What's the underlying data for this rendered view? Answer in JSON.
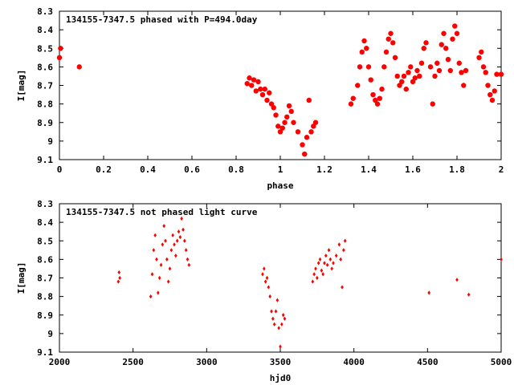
{
  "colors": {
    "marker": "#ff0000",
    "axis": "#000000",
    "background": "#ffffff"
  },
  "chart_data": [
    {
      "type": "scatter",
      "title": "134155-7347.5 phased with P=494.0day",
      "xlabel": "phase",
      "ylabel": "I[mag]",
      "xlim": [
        0,
        2
      ],
      "ylim": [
        8.3,
        9.1
      ],
      "y_inverted": true,
      "grid": false,
      "x_ticks": [
        "0",
        "0.2",
        "0.4",
        "0.6",
        "0.8",
        "1",
        "1.2",
        "1.4",
        "1.6",
        "1.8",
        "2"
      ],
      "y_ticks": [
        "8.3",
        "8.4",
        "8.5",
        "8.6",
        "8.7",
        "8.8",
        "8.9",
        "9",
        "9.1"
      ],
      "series": [
        {
          "marker": "filled-circle",
          "x": [
            0.0,
            0.005,
            0.09,
            0.85,
            0.86,
            0.87,
            0.88,
            0.89,
            0.9,
            0.91,
            0.92,
            0.93,
            0.94,
            0.95,
            0.96,
            0.97,
            0.98,
            0.99,
            1.0,
            1.01,
            1.02,
            1.03,
            1.04,
            1.05,
            1.06,
            1.08,
            1.1,
            1.11,
            1.12,
            1.13,
            1.14,
            1.15,
            1.16,
            1.32,
            1.33,
            1.35,
            1.36,
            1.37,
            1.38,
            1.39,
            1.4,
            1.41,
            1.42,
            1.43,
            1.44,
            1.45,
            1.46,
            1.47,
            1.48,
            1.49,
            1.5,
            1.51,
            1.52,
            1.53,
            1.54,
            1.55,
            1.56,
            1.57,
            1.58,
            1.59,
            1.6,
            1.61,
            1.62,
            1.63,
            1.64,
            1.65,
            1.66,
            1.68,
            1.69,
            1.7,
            1.71,
            1.72,
            1.73,
            1.74,
            1.75,
            1.76,
            1.77,
            1.78,
            1.79,
            1.8,
            1.81,
            1.82,
            1.83,
            1.84,
            1.9,
            1.91,
            1.92,
            1.93,
            1.94,
            1.95,
            1.96,
            1.97,
            1.98,
            2.0
          ],
          "y": [
            8.55,
            8.5,
            8.6,
            8.69,
            8.66,
            8.7,
            8.67,
            8.73,
            8.68,
            8.72,
            8.75,
            8.72,
            8.78,
            8.74,
            8.8,
            8.82,
            8.86,
            8.92,
            8.95,
            8.93,
            8.9,
            8.87,
            8.81,
            8.84,
            8.9,
            8.95,
            9.02,
            9.07,
            8.98,
            8.78,
            8.95,
            8.92,
            8.9,
            8.8,
            8.77,
            8.7,
            8.6,
            8.52,
            8.46,
            8.5,
            8.6,
            8.67,
            8.75,
            8.78,
            8.8,
            8.77,
            8.72,
            8.6,
            8.52,
            8.45,
            8.42,
            8.47,
            8.55,
            8.65,
            8.7,
            8.68,
            8.65,
            8.72,
            8.63,
            8.6,
            8.68,
            8.66,
            8.62,
            8.65,
            8.58,
            8.5,
            8.47,
            8.6,
            8.8,
            8.65,
            8.58,
            8.62,
            8.48,
            8.42,
            8.5,
            8.56,
            8.62,
            8.45,
            8.38,
            8.42,
            8.58,
            8.63,
            8.7,
            8.62,
            8.55,
            8.52,
            8.6,
            8.63,
            8.7,
            8.75,
            8.78,
            8.73,
            8.64,
            8.64
          ]
        }
      ]
    },
    {
      "type": "scatter",
      "title": "134155-7347.5 not phased light curve",
      "xlabel": "hjd0",
      "ylabel": "I[mag]",
      "xlim": [
        2000,
        5000
      ],
      "ylim": [
        8.3,
        9.1
      ],
      "y_inverted": true,
      "grid": false,
      "x_ticks": [
        "2000",
        "2500",
        "3000",
        "3500",
        "4000",
        "4500",
        "5000"
      ],
      "y_ticks": [
        "8.3",
        "8.4",
        "8.5",
        "8.6",
        "8.7",
        "8.8",
        "8.9",
        "9",
        "9.1"
      ],
      "series": [
        {
          "marker": "small-diamond",
          "x": [
            2400,
            2405,
            2410,
            2620,
            2630,
            2640,
            2650,
            2660,
            2670,
            2680,
            2690,
            2700,
            2710,
            2720,
            2730,
            2740,
            2750,
            2760,
            2770,
            2780,
            2790,
            2800,
            2810,
            2820,
            2830,
            2840,
            2850,
            2860,
            2870,
            2880,
            3380,
            3390,
            3400,
            3410,
            3420,
            3430,
            3440,
            3450,
            3460,
            3470,
            3480,
            3490,
            3500,
            3510,
            3520,
            3530,
            3720,
            3730,
            3740,
            3750,
            3760,
            3770,
            3780,
            3790,
            3800,
            3810,
            3820,
            3830,
            3840,
            3850,
            3860,
            3880,
            3900,
            3910,
            3920,
            3930,
            3940,
            4510,
            4700,
            4780,
            5000
          ],
          "y": [
            8.72,
            8.67,
            8.7,
            8.8,
            8.68,
            8.55,
            8.47,
            8.6,
            8.78,
            8.7,
            8.63,
            8.52,
            8.42,
            8.5,
            8.6,
            8.72,
            8.65,
            8.55,
            8.47,
            8.52,
            8.58,
            8.5,
            8.45,
            8.48,
            8.38,
            8.44,
            8.5,
            8.55,
            8.6,
            8.63,
            8.68,
            8.65,
            8.72,
            8.7,
            8.75,
            8.8,
            8.88,
            8.92,
            8.95,
            8.88,
            8.82,
            8.97,
            9.07,
            8.95,
            8.9,
            8.92,
            8.72,
            8.68,
            8.65,
            8.7,
            8.62,
            8.6,
            8.66,
            8.68,
            8.62,
            8.58,
            8.63,
            8.55,
            8.6,
            8.65,
            8.62,
            8.58,
            8.52,
            8.6,
            8.75,
            8.55,
            8.5,
            8.78,
            8.71,
            8.79,
            8.6
          ]
        }
      ]
    }
  ]
}
